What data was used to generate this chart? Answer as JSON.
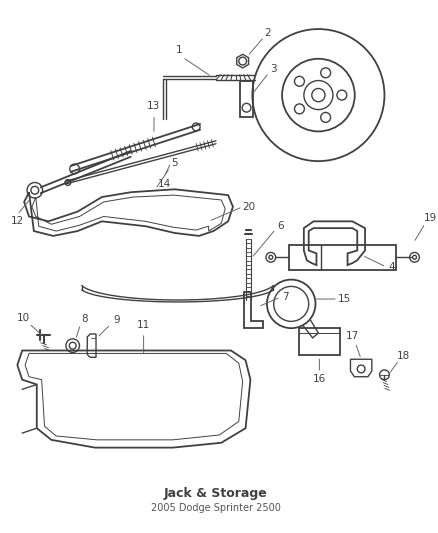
{
  "title": "Jack & Storage",
  "subtitle": "2005 Dodge Sprinter 2500",
  "bg_color": "#ffffff",
  "line_color": "#404040",
  "fig_width": 4.38,
  "fig_height": 5.33,
  "dpi": 100
}
